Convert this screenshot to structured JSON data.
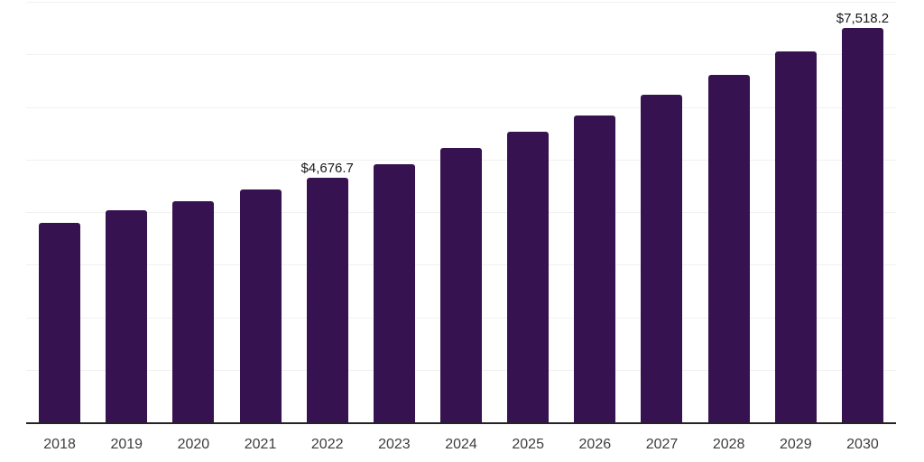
{
  "chart_data": {
    "type": "bar",
    "title": "",
    "xlabel": "",
    "ylabel": "",
    "categories": [
      "2018",
      "2019",
      "2020",
      "2021",
      "2022",
      "2023",
      "2024",
      "2025",
      "2026",
      "2027",
      "2028",
      "2029",
      "2030"
    ],
    "values": [
      3810,
      4050,
      4220,
      4440,
      4676.7,
      4935,
      5240,
      5545,
      5860,
      6255,
      6630,
      7070,
      7518.2
    ],
    "value_labels": [
      "",
      "",
      "",
      "",
      "$4,676.7",
      "",
      "",
      "",
      "",
      "",
      "",
      "",
      "$7,518.2"
    ],
    "ylim": [
      0,
      8000
    ],
    "gridline_step": 1000,
    "grid": true,
    "legend": false,
    "colors": {
      "bar": "#371250",
      "axis_line": "#242424",
      "gridline": "#f1f1f1",
      "tick_label": "#3d3d3d",
      "value_label": "#1a1a1a",
      "background": "#ffffff"
    }
  }
}
